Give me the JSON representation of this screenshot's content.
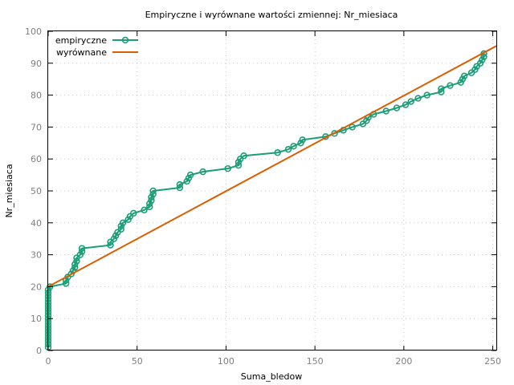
{
  "chart_data": {
    "type": "line",
    "title": "Empiryczne i wyrównane wartości zmiennej: Nr_miesiaca",
    "xlabel": "Suma_bledow",
    "ylabel": "Nr_miesiaca",
    "xlim": [
      0,
      252
    ],
    "ylim": [
      0,
      100
    ],
    "xticks": [
      0,
      50,
      100,
      150,
      200,
      250
    ],
    "yticks": [
      0,
      10,
      20,
      30,
      40,
      50,
      60,
      70,
      80,
      90,
      100
    ],
    "grid": true,
    "legend_position": "top-left",
    "series": [
      {
        "name": "empiryczne",
        "color": "#1b9e77",
        "marker": "circle",
        "points": [
          [
            0,
            1
          ],
          [
            0,
            2
          ],
          [
            0,
            3
          ],
          [
            0,
            4
          ],
          [
            0,
            5
          ],
          [
            0,
            6
          ],
          [
            0,
            7
          ],
          [
            0,
            8
          ],
          [
            0,
            9
          ],
          [
            0,
            10
          ],
          [
            0,
            11
          ],
          [
            0,
            12
          ],
          [
            0,
            13
          ],
          [
            0,
            14
          ],
          [
            0,
            15
          ],
          [
            0,
            16
          ],
          [
            0,
            17
          ],
          [
            0,
            18
          ],
          [
            0,
            19
          ],
          [
            1,
            20
          ],
          [
            10,
            21
          ],
          [
            10,
            22
          ],
          [
            11,
            23
          ],
          [
            13,
            24
          ],
          [
            14,
            25
          ],
          [
            15,
            26
          ],
          [
            15,
            27
          ],
          [
            16,
            28
          ],
          [
            16,
            29
          ],
          [
            18,
            30
          ],
          [
            19,
            31
          ],
          [
            19,
            32
          ],
          [
            35,
            33
          ],
          [
            35,
            34
          ],
          [
            37,
            35
          ],
          [
            38,
            36
          ],
          [
            39,
            37
          ],
          [
            41,
            38
          ],
          [
            41,
            39
          ],
          [
            42,
            40
          ],
          [
            45,
            41
          ],
          [
            46,
            42
          ],
          [
            48,
            43
          ],
          [
            54,
            44
          ],
          [
            57,
            45
          ],
          [
            57,
            46
          ],
          [
            58,
            47
          ],
          [
            58,
            48
          ],
          [
            59,
            49
          ],
          [
            59,
            50
          ],
          [
            74,
            51
          ],
          [
            74,
            52
          ],
          [
            78,
            53
          ],
          [
            79,
            54
          ],
          [
            80,
            55
          ],
          [
            87,
            56
          ],
          [
            101,
            57
          ],
          [
            107,
            58
          ],
          [
            107,
            59
          ],
          [
            108,
            60
          ],
          [
            110,
            61
          ],
          [
            129,
            62
          ],
          [
            135,
            63
          ],
          [
            138,
            64
          ],
          [
            142,
            65
          ],
          [
            143,
            66
          ],
          [
            156,
            67
          ],
          [
            161,
            68
          ],
          [
            166,
            69
          ],
          [
            171,
            70
          ],
          [
            177,
            71
          ],
          [
            179,
            72
          ],
          [
            180,
            73
          ],
          [
            183,
            74
          ],
          [
            190,
            75
          ],
          [
            196,
            76
          ],
          [
            201,
            77
          ],
          [
            204,
            78
          ],
          [
            208,
            79
          ],
          [
            213,
            80
          ],
          [
            221,
            81
          ],
          [
            221,
            82
          ],
          [
            226,
            83
          ],
          [
            232,
            84
          ],
          [
            233,
            85
          ],
          [
            234,
            86
          ],
          [
            238,
            87
          ],
          [
            240,
            88
          ],
          [
            241,
            89
          ],
          [
            243,
            90
          ],
          [
            244,
            91
          ],
          [
            245,
            92
          ],
          [
            245,
            93
          ]
        ]
      },
      {
        "name": "wyrównane",
        "color": "#d95f02",
        "marker": "none",
        "points": [
          [
            0,
            20
          ],
          [
            252,
            95.4
          ]
        ]
      }
    ]
  }
}
